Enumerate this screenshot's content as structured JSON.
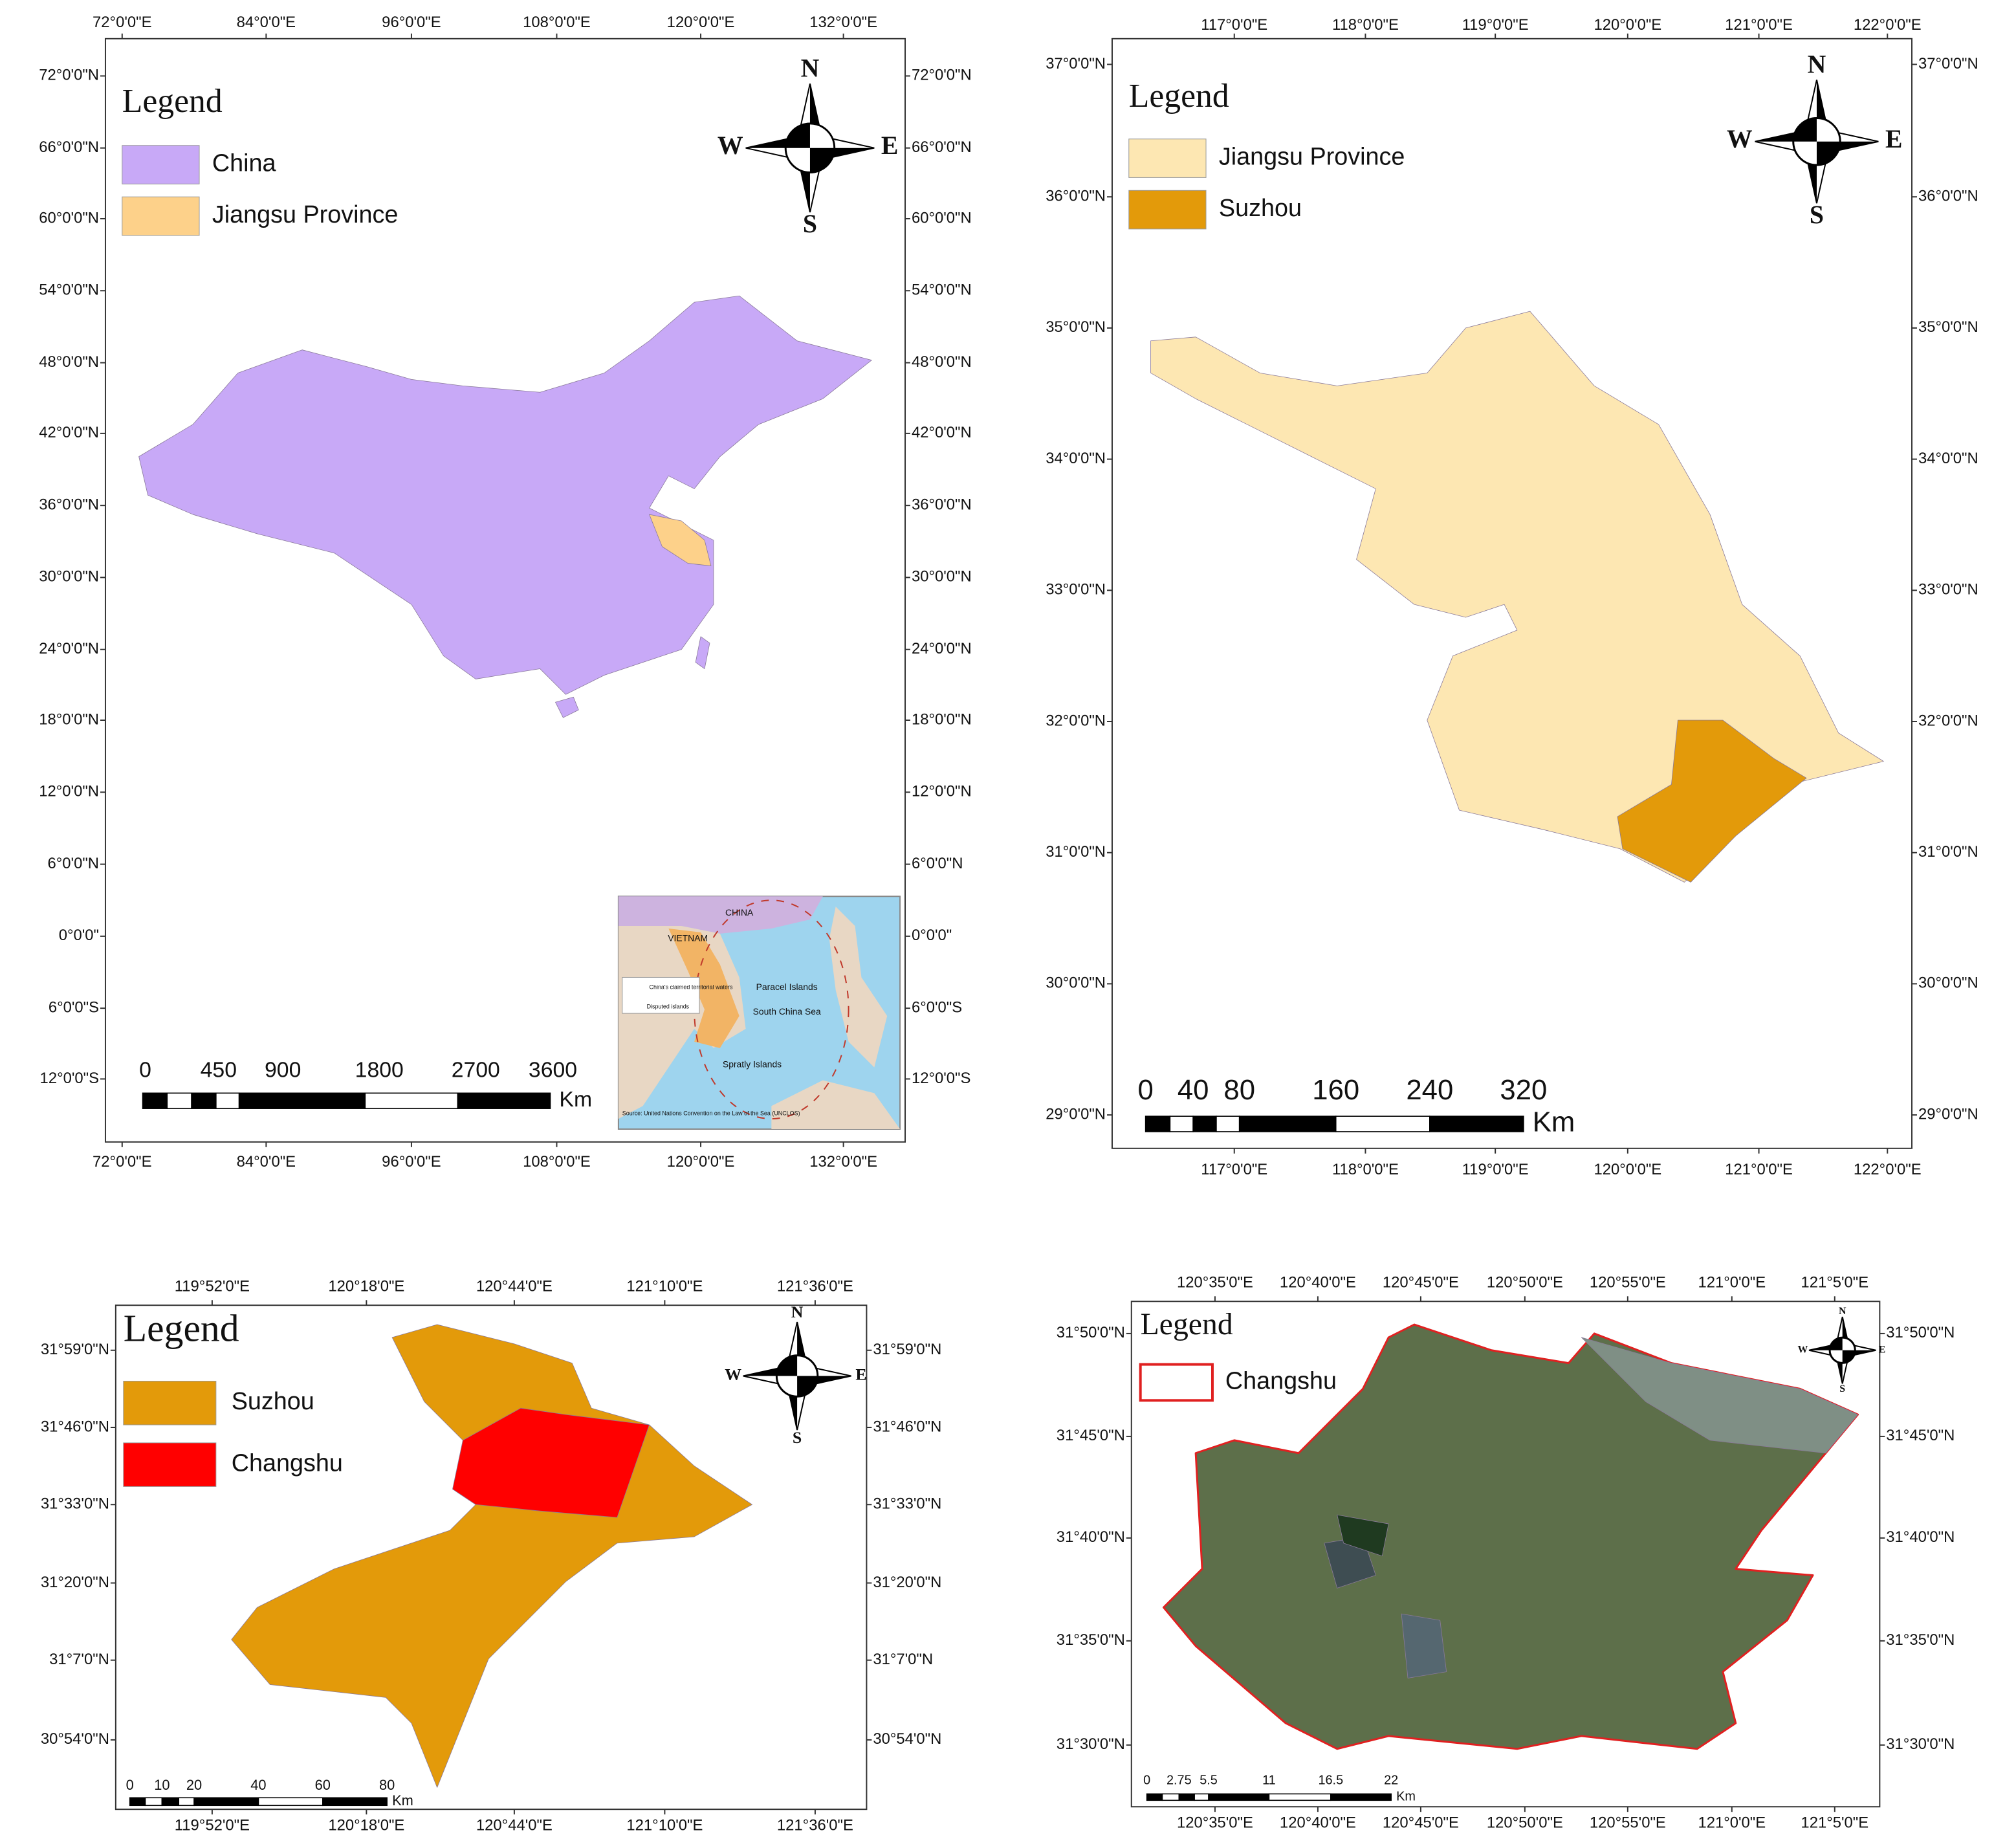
{
  "panels": [
    {
      "legend_title": "Legend",
      "legend": [
        {
          "label": "China",
          "color": "#c8a9f7"
        },
        {
          "label": "Jiangsu Province",
          "color": "#fdd18a"
        }
      ],
      "lon_labels": [
        "72°0'0\"E",
        "84°0'0\"E",
        "96°0'0\"E",
        "108°0'0\"E",
        "120°0'0\"E",
        "132°0'0\"E"
      ],
      "lat_labels": [
        "72°0'0\"N",
        "66°0'0\"N",
        "60°0'0\"N",
        "54°0'0\"N",
        "48°0'0\"N",
        "42°0'0\"N",
        "36°0'0\"N",
        "30°0'0\"N",
        "24°0'0\"N",
        "18°0'0\"N",
        "12°0'0\"N",
        "6°0'0\"N",
        "0°0'0\"",
        "6°0'0\"S",
        "12°0'0\"S"
      ],
      "scale_labels": [
        0,
        450,
        900,
        1800,
        2700,
        3600
      ],
      "scale_unit": "Km",
      "compass": {
        "n": "N",
        "s": "S",
        "e": "E",
        "w": "W"
      },
      "inset": {
        "labels": [
          "CHINA",
          "VIETNAM",
          "Paracel Islands",
          "South China Sea",
          "Spratly Islands",
          "China's claimed territorial waters",
          "Disputed islands",
          "Source: United Nations Convention on the Law of the Sea (UNCLOS)"
        ]
      }
    },
    {
      "legend_title": "Legend",
      "legend": [
        {
          "label": "Jiangsu Province",
          "color": "#fde7b2"
        },
        {
          "label": "Suzhou",
          "color": "#e39a0a"
        }
      ],
      "lon_labels": [
        "117°0'0\"E",
        "118°0'0\"E",
        "119°0'0\"E",
        "120°0'0\"E",
        "121°0'0\"E",
        "122°0'0\"E"
      ],
      "lat_labels": [
        "37°0'0\"N",
        "36°0'0\"N",
        "35°0'0\"N",
        "34°0'0\"N",
        "33°0'0\"N",
        "32°0'0\"N",
        "31°0'0\"N",
        "30°0'0\"N",
        "29°0'0\"N"
      ],
      "scale_labels": [
        0,
        40,
        80,
        160,
        240,
        320
      ],
      "scale_unit": "Km",
      "compass": {
        "n": "N",
        "s": "S",
        "e": "E",
        "w": "W"
      }
    },
    {
      "legend_title": "Legend",
      "legend": [
        {
          "label": "Suzhou",
          "color": "#e39a0a"
        },
        {
          "label": "Changshu",
          "color": "#ff0000"
        }
      ],
      "lon_labels": [
        "119°52'0\"E",
        "120°18'0\"E",
        "120°44'0\"E",
        "121°10'0\"E",
        "121°36'0\"E"
      ],
      "lat_labels": [
        "31°59'0\"N",
        "31°46'0\"N",
        "31°33'0\"N",
        "31°20'0\"N",
        "31°7'0\"N",
        "30°54'0\"N"
      ],
      "scale_labels": [
        0,
        10,
        20,
        40,
        60,
        80
      ],
      "scale_unit": "Km",
      "compass": {
        "n": "N",
        "s": "S",
        "e": "E",
        "w": "W"
      }
    },
    {
      "legend_title": "Legend",
      "legend": [
        {
          "label": "Changshu",
          "color": "#e02020"
        }
      ],
      "lon_labels": [
        "120°35'0\"E",
        "120°40'0\"E",
        "120°45'0\"E",
        "120°50'0\"E",
        "120°55'0\"E",
        "121°0'0\"E",
        "121°5'0\"E"
      ],
      "lat_labels": [
        "31°50'0\"N",
        "31°45'0\"N",
        "31°40'0\"N",
        "31°35'0\"N",
        "31°30'0\"N"
      ],
      "scale_labels": [
        0,
        2.75,
        5.5,
        11,
        16.5,
        22
      ],
      "scale_unit": "Km",
      "compass": {
        "n": "N",
        "s": "S",
        "e": "E",
        "w": "W"
      }
    }
  ]
}
